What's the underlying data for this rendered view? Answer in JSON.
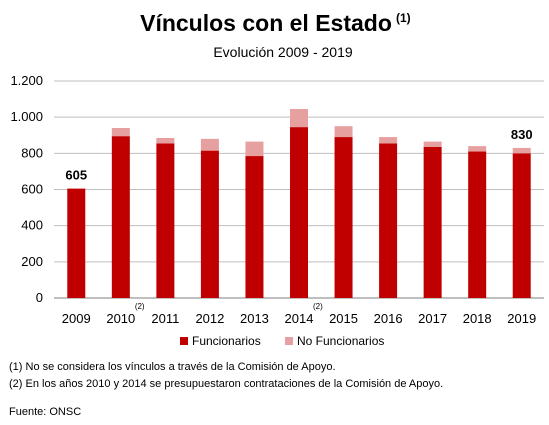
{
  "chart_data": {
    "type": "bar",
    "stacked": true,
    "title": "Vínculos con el Estado",
    "title_note": "(1)",
    "subtitle": "Evolución 2009 - 2019",
    "categories": [
      "2009",
      "2010",
      "2011",
      "2012",
      "2013",
      "2014",
      "2015",
      "2016",
      "2017",
      "2018",
      "2019"
    ],
    "category_notes": [
      "",
      "(2)",
      "",
      "",
      "",
      "(2)",
      "",
      "",
      "",
      "",
      ""
    ],
    "series": [
      {
        "name": "Funcionarios",
        "color": "#c00000",
        "values": [
          605,
          895,
          855,
          815,
          785,
          945,
          890,
          855,
          835,
          810,
          800
        ]
      },
      {
        "name": "No Funcionarios",
        "color": "#e6a0a0",
        "values": [
          0,
          45,
          30,
          65,
          80,
          100,
          60,
          35,
          30,
          30,
          30
        ]
      }
    ],
    "data_labels": [
      {
        "category": "2009",
        "text": "605"
      },
      {
        "category": "2019",
        "text": "830"
      }
    ],
    "ylim": [
      0,
      1200
    ],
    "yticks": [
      0,
      200,
      400,
      600,
      800,
      1000,
      1200
    ],
    "ytick_labels": [
      "0",
      "200",
      "400",
      "600",
      "800",
      "1.000",
      "1.200"
    ],
    "grid": true,
    "legend_position": "bottom",
    "xlabel": "",
    "ylabel": ""
  },
  "footnotes": [
    "(1) No se considera los vínculos a través de la Comisión de Apoyo.",
    "(2) En los años 2010 y 2014 se presupuestaron contrataciones de la Comisión de Apoyo."
  ],
  "source": "Fuente: ONSC"
}
